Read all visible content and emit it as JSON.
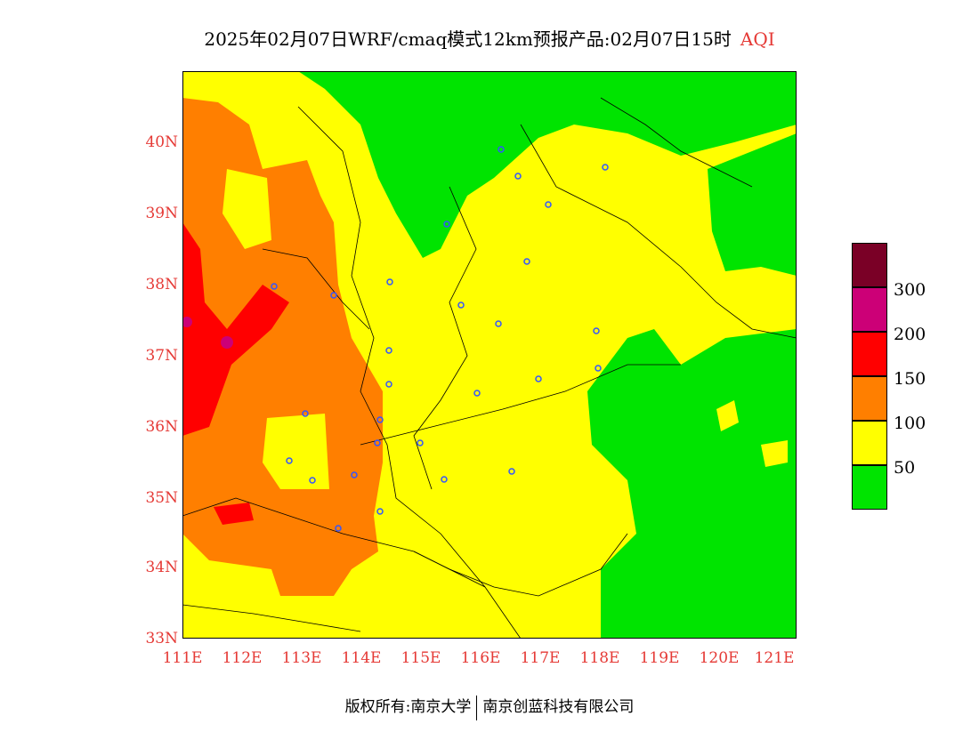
{
  "title": {
    "main": "2025年02月07日WRF/cmaq模式12km预报产品:02月07日15时",
    "product": "AQI"
  },
  "map": {
    "y_ticks": [
      "40N",
      "39N",
      "38N",
      "37N",
      "36N",
      "35N",
      "34N",
      "33N"
    ],
    "x_ticks": [
      "111E",
      "112E",
      "113E",
      "114E",
      "115E",
      "116E",
      "117E",
      "118E",
      "119E",
      "120E",
      "121E"
    ],
    "lat_range": [
      33,
      41
    ],
    "lon_range": [
      111,
      121.3
    ]
  },
  "legend": {
    "levels": [
      {
        "color": "#7a0026",
        "label": ""
      },
      {
        "color": "#cc0077",
        "label": "300"
      },
      {
        "color": "#ff0000",
        "label": "200"
      },
      {
        "color": "#ff7f00",
        "label": "150"
      },
      {
        "color": "#ffff00",
        "label": "100"
      },
      {
        "color": "#00e400",
        "label": "50"
      }
    ]
  },
  "footer": {
    "left": "版权所有:南京大学",
    "right": "南京创蓝科技有限公司"
  }
}
